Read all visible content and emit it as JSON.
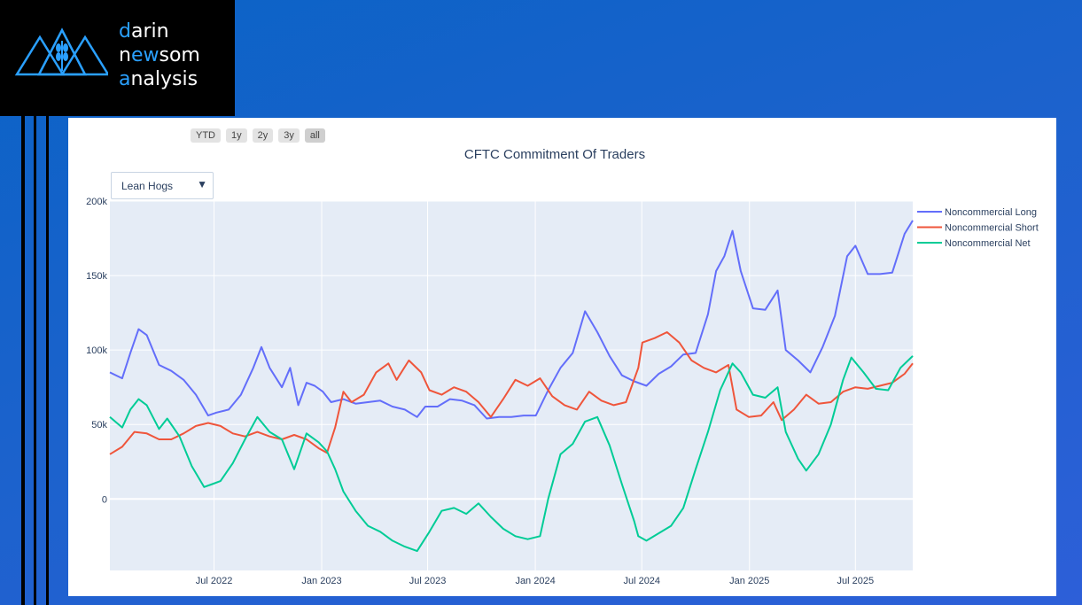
{
  "logo": {
    "line1": {
      "accent": "d",
      "rest": "arin"
    },
    "line2": {
      "a": "n",
      "accent": "ew",
      "rest": "som"
    },
    "line3": {
      "accent": "a",
      "rest": "nalysis"
    }
  },
  "range_buttons": [
    "YTD",
    "1y",
    "2y",
    "3y",
    "all"
  ],
  "active_range": "all",
  "dropdown": {
    "selected": "Lean Hogs",
    "caret": "▼"
  },
  "colors": {
    "long": "#636efa",
    "short": "#ef553b",
    "net": "#00cc96",
    "plot_bg": "#e5ecf6",
    "grid": "#ffffff",
    "text": "#2a3f5f",
    "accent": "#2aa0ff"
  },
  "chart_data": {
    "type": "line",
    "title": "CFTC Commitment Of Traders",
    "xlabel": "",
    "ylabel": "",
    "x_range": [
      "2022-01-04",
      "2025-10-07"
    ],
    "ylim": [
      -48000,
      200000
    ],
    "y_ticks": [
      {
        "v": 0,
        "label": "0"
      },
      {
        "v": 50000,
        "label": "50k"
      },
      {
        "v": 100000,
        "label": "100k"
      },
      {
        "v": 150000,
        "label": "150k"
      },
      {
        "v": 200000,
        "label": "200k"
      }
    ],
    "x_ticks": [
      {
        "date": "2022-07-01",
        "label": "Jul 2022"
      },
      {
        "date": "2023-01-01",
        "label": "Jan 2023"
      },
      {
        "date": "2023-07-01",
        "label": "Jul 2023"
      },
      {
        "date": "2024-01-01",
        "label": "Jan 2024"
      },
      {
        "date": "2024-07-01",
        "label": "Jul 2024"
      },
      {
        "date": "2025-01-01",
        "label": "Jan 2025"
      },
      {
        "date": "2025-07-01",
        "label": "Jul 2025"
      }
    ],
    "grid": true,
    "legend_position": "top-right",
    "series": [
      {
        "name": "Noncommercial Long",
        "key": "long",
        "points": [
          [
            "2022-01-04",
            85000
          ],
          [
            "2022-01-25",
            81000
          ],
          [
            "2022-02-08",
            98000
          ],
          [
            "2022-02-22",
            114000
          ],
          [
            "2022-03-08",
            110000
          ],
          [
            "2022-03-29",
            90000
          ],
          [
            "2022-04-19",
            86000
          ],
          [
            "2022-05-10",
            80000
          ],
          [
            "2022-05-31",
            70000
          ],
          [
            "2022-06-21",
            56000
          ],
          [
            "2022-07-05",
            58000
          ],
          [
            "2022-07-26",
            60000
          ],
          [
            "2022-08-16",
            70000
          ],
          [
            "2022-09-06",
            88000
          ],
          [
            "2022-09-20",
            102000
          ],
          [
            "2022-10-04",
            88000
          ],
          [
            "2022-10-25",
            75000
          ],
          [
            "2022-11-08",
            88000
          ],
          [
            "2022-11-22",
            63000
          ],
          [
            "2022-12-06",
            78000
          ],
          [
            "2022-12-20",
            76000
          ],
          [
            "2023-01-03",
            72000
          ],
          [
            "2023-01-17",
            65000
          ],
          [
            "2023-02-07",
            67000
          ],
          [
            "2023-02-28",
            64000
          ],
          [
            "2023-03-21",
            65000
          ],
          [
            "2023-04-11",
            66000
          ],
          [
            "2023-05-02",
            62000
          ],
          [
            "2023-05-23",
            60000
          ],
          [
            "2023-06-13",
            55000
          ],
          [
            "2023-06-27",
            62000
          ],
          [
            "2023-07-18",
            62000
          ],
          [
            "2023-08-08",
            67000
          ],
          [
            "2023-08-29",
            66000
          ],
          [
            "2023-09-19",
            63000
          ],
          [
            "2023-10-10",
            54000
          ],
          [
            "2023-10-31",
            55000
          ],
          [
            "2023-11-21",
            55000
          ],
          [
            "2023-12-12",
            56000
          ],
          [
            "2024-01-02",
            56000
          ],
          [
            "2024-01-23",
            73000
          ],
          [
            "2024-02-13",
            88000
          ],
          [
            "2024-03-05",
            98000
          ],
          [
            "2024-03-26",
            126000
          ],
          [
            "2024-04-16",
            112000
          ],
          [
            "2024-05-07",
            96000
          ],
          [
            "2024-05-28",
            83000
          ],
          [
            "2024-06-18",
            79000
          ],
          [
            "2024-07-09",
            76000
          ],
          [
            "2024-07-30",
            84000
          ],
          [
            "2024-08-20",
            89000
          ],
          [
            "2024-09-10",
            97000
          ],
          [
            "2024-10-01",
            98000
          ],
          [
            "2024-10-22",
            124000
          ],
          [
            "2024-11-05",
            153000
          ],
          [
            "2024-11-19",
            163000
          ],
          [
            "2024-12-03",
            180000
          ],
          [
            "2024-12-17",
            153000
          ],
          [
            "2025-01-07",
            128000
          ],
          [
            "2025-01-28",
            127000
          ],
          [
            "2025-02-18",
            140000
          ],
          [
            "2025-03-04",
            100000
          ],
          [
            "2025-03-25",
            93000
          ],
          [
            "2025-04-15",
            85000
          ],
          [
            "2025-05-06",
            102000
          ],
          [
            "2025-05-27",
            123000
          ],
          [
            "2025-06-17",
            163000
          ],
          [
            "2025-07-01",
            170000
          ],
          [
            "2025-07-22",
            151000
          ],
          [
            "2025-08-12",
            151000
          ],
          [
            "2025-09-02",
            152000
          ],
          [
            "2025-09-23",
            178000
          ],
          [
            "2025-10-07",
            187000
          ]
        ]
      },
      {
        "name": "Noncommercial Short",
        "key": "short",
        "points": [
          [
            "2022-01-04",
            30000
          ],
          [
            "2022-01-25",
            35000
          ],
          [
            "2022-02-15",
            45000
          ],
          [
            "2022-03-08",
            44000
          ],
          [
            "2022-03-29",
            40000
          ],
          [
            "2022-04-19",
            40000
          ],
          [
            "2022-05-10",
            44000
          ],
          [
            "2022-05-31",
            49000
          ],
          [
            "2022-06-21",
            51000
          ],
          [
            "2022-07-12",
            49000
          ],
          [
            "2022-08-02",
            44000
          ],
          [
            "2022-08-23",
            42000
          ],
          [
            "2022-09-13",
            45000
          ],
          [
            "2022-10-04",
            42000
          ],
          [
            "2022-10-25",
            40000
          ],
          [
            "2022-11-15",
            43000
          ],
          [
            "2022-12-06",
            40000
          ],
          [
            "2022-12-27",
            34000
          ],
          [
            "2023-01-10",
            31000
          ],
          [
            "2023-01-24",
            48000
          ],
          [
            "2023-02-07",
            72000
          ],
          [
            "2023-02-21",
            65000
          ],
          [
            "2023-03-14",
            70000
          ],
          [
            "2023-04-04",
            85000
          ],
          [
            "2023-04-25",
            91000
          ],
          [
            "2023-05-09",
            80000
          ],
          [
            "2023-05-30",
            93000
          ],
          [
            "2023-06-20",
            85000
          ],
          [
            "2023-07-04",
            73000
          ],
          [
            "2023-07-25",
            70000
          ],
          [
            "2023-08-15",
            75000
          ],
          [
            "2023-09-05",
            72000
          ],
          [
            "2023-09-26",
            65000
          ],
          [
            "2023-10-17",
            55000
          ],
          [
            "2023-11-07",
            67000
          ],
          [
            "2023-11-28",
            80000
          ],
          [
            "2023-12-19",
            76000
          ],
          [
            "2024-01-09",
            81000
          ],
          [
            "2024-01-30",
            69000
          ],
          [
            "2024-02-20",
            63000
          ],
          [
            "2024-03-12",
            60000
          ],
          [
            "2024-04-02",
            72000
          ],
          [
            "2024-04-23",
            66000
          ],
          [
            "2024-05-14",
            63000
          ],
          [
            "2024-06-04",
            65000
          ],
          [
            "2024-06-25",
            88000
          ],
          [
            "2024-07-02",
            105000
          ],
          [
            "2024-07-23",
            108000
          ],
          [
            "2024-08-13",
            112000
          ],
          [
            "2024-09-03",
            105000
          ],
          [
            "2024-09-24",
            93000
          ],
          [
            "2024-10-15",
            88000
          ],
          [
            "2024-11-05",
            85000
          ],
          [
            "2024-11-26",
            90000
          ],
          [
            "2024-12-10",
            60000
          ],
          [
            "2024-12-31",
            55000
          ],
          [
            "2025-01-21",
            56000
          ],
          [
            "2025-02-11",
            65000
          ],
          [
            "2025-02-25",
            53000
          ],
          [
            "2025-03-18",
            60000
          ],
          [
            "2025-04-08",
            70000
          ],
          [
            "2025-04-29",
            64000
          ],
          [
            "2025-05-20",
            65000
          ],
          [
            "2025-06-10",
            72000
          ],
          [
            "2025-07-01",
            75000
          ],
          [
            "2025-07-22",
            74000
          ],
          [
            "2025-08-12",
            76000
          ],
          [
            "2025-09-02",
            78000
          ],
          [
            "2025-09-23",
            84000
          ],
          [
            "2025-10-07",
            91000
          ]
        ]
      },
      {
        "name": "Noncommercial Net",
        "key": "net",
        "points": [
          [
            "2022-01-04",
            55000
          ],
          [
            "2022-01-25",
            48000
          ],
          [
            "2022-02-08",
            60000
          ],
          [
            "2022-02-22",
            67000
          ],
          [
            "2022-03-08",
            63000
          ],
          [
            "2022-03-29",
            47000
          ],
          [
            "2022-04-12",
            54000
          ],
          [
            "2022-05-03",
            42000
          ],
          [
            "2022-05-24",
            22000
          ],
          [
            "2022-06-14",
            8000
          ],
          [
            "2022-06-28",
            10000
          ],
          [
            "2022-07-12",
            12000
          ],
          [
            "2022-08-02",
            24000
          ],
          [
            "2022-08-23",
            40000
          ],
          [
            "2022-09-13",
            55000
          ],
          [
            "2022-10-04",
            45000
          ],
          [
            "2022-10-25",
            40000
          ],
          [
            "2022-11-15",
            20000
          ],
          [
            "2022-12-06",
            44000
          ],
          [
            "2022-12-27",
            38000
          ],
          [
            "2023-01-10",
            32000
          ],
          [
            "2023-01-24",
            20000
          ],
          [
            "2023-02-07",
            5000
          ],
          [
            "2023-02-28",
            -8000
          ],
          [
            "2023-03-21",
            -18000
          ],
          [
            "2023-04-11",
            -22000
          ],
          [
            "2023-05-02",
            -28000
          ],
          [
            "2023-05-23",
            -32000
          ],
          [
            "2023-06-13",
            -35000
          ],
          [
            "2023-07-04",
            -22000
          ],
          [
            "2023-07-25",
            -8000
          ],
          [
            "2023-08-15",
            -6000
          ],
          [
            "2023-09-05",
            -10000
          ],
          [
            "2023-09-26",
            -3000
          ],
          [
            "2023-10-17",
            -12000
          ],
          [
            "2023-11-07",
            -20000
          ],
          [
            "2023-11-28",
            -25000
          ],
          [
            "2023-12-19",
            -27000
          ],
          [
            "2024-01-09",
            -25000
          ],
          [
            "2024-01-23",
            0
          ],
          [
            "2024-02-13",
            30000
          ],
          [
            "2024-03-05",
            37000
          ],
          [
            "2024-03-26",
            52000
          ],
          [
            "2024-04-16",
            55000
          ],
          [
            "2024-05-07",
            36000
          ],
          [
            "2024-05-28",
            10000
          ],
          [
            "2024-06-18",
            -15000
          ],
          [
            "2024-06-25",
            -25000
          ],
          [
            "2024-07-09",
            -28000
          ],
          [
            "2024-07-30",
            -23000
          ],
          [
            "2024-08-20",
            -18000
          ],
          [
            "2024-09-10",
            -6000
          ],
          [
            "2024-10-01",
            20000
          ],
          [
            "2024-10-22",
            45000
          ],
          [
            "2024-11-12",
            73000
          ],
          [
            "2024-12-03",
            91000
          ],
          [
            "2024-12-17",
            85000
          ],
          [
            "2025-01-07",
            70000
          ],
          [
            "2025-01-28",
            68000
          ],
          [
            "2025-02-18",
            75000
          ],
          [
            "2025-03-04",
            45000
          ],
          [
            "2025-03-25",
            27000
          ],
          [
            "2025-04-08",
            19000
          ],
          [
            "2025-04-29",
            30000
          ],
          [
            "2025-05-20",
            50000
          ],
          [
            "2025-06-10",
            80000
          ],
          [
            "2025-06-24",
            95000
          ],
          [
            "2025-07-15",
            85000
          ],
          [
            "2025-08-05",
            74000
          ],
          [
            "2025-08-26",
            73000
          ],
          [
            "2025-09-16",
            88000
          ],
          [
            "2025-10-07",
            96000
          ]
        ]
      }
    ]
  }
}
